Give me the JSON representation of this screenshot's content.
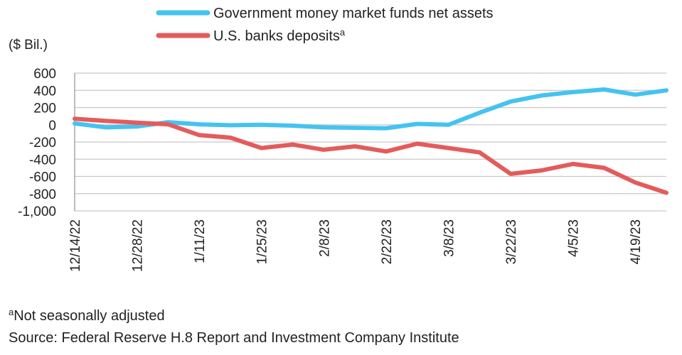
{
  "chart_data": {
    "type": "line",
    "ylabel": "($ Bil.)",
    "ylim": [
      -1000,
      600
    ],
    "yticks": [
      600,
      400,
      200,
      0,
      -200,
      -400,
      -600,
      -800,
      -1000
    ],
    "ytick_labels": [
      "600",
      "400",
      "200",
      "0",
      "-200",
      "-400",
      "-600",
      "-800",
      "-1,000"
    ],
    "x": [
      "12/14/22",
      "12/21/22",
      "12/28/22",
      "1/4/23",
      "1/11/23",
      "1/18/23",
      "1/25/23",
      "2/1/23",
      "2/8/23",
      "2/15/23",
      "2/22/23",
      "3/1/23",
      "3/8/23",
      "3/15/23",
      "3/22/23",
      "3/29/23",
      "4/5/23",
      "4/12/23",
      "4/19/23",
      "4/26/23"
    ],
    "xtick_labels": [
      "12/14/22",
      "12/28/22",
      "1/11/23",
      "1/25/23",
      "2/8/23",
      "2/22/23",
      "3/8/23",
      "3/22/23",
      "4/5/23",
      "4/19/23"
    ],
    "grid": true,
    "legend_position": "top",
    "series": [
      {
        "name": "Government money market funds net assets",
        "name_superscript": "",
        "color": "#45C3F0",
        "values": [
          15,
          -30,
          -20,
          30,
          5,
          -5,
          0,
          -10,
          -30,
          -35,
          -40,
          10,
          0,
          140,
          270,
          340,
          380,
          410,
          350,
          400
        ]
      },
      {
        "name": "U.S. banks deposits",
        "name_superscript": "a",
        "color": "#E45B5B",
        "values": [
          70,
          45,
          25,
          5,
          -120,
          -150,
          -270,
          -230,
          -290,
          -250,
          -310,
          -220,
          -270,
          -320,
          -570,
          -530,
          -455,
          -500,
          -670,
          -790
        ]
      }
    ],
    "notes": {
      "footnote_mark": "a",
      "footnote": "Not seasonally adjusted",
      "source": "Source: Federal Reserve H.8 Report and Investment Company Institute"
    }
  },
  "colors": {
    "grid": "#C8C8C8",
    "axis": "#999999"
  }
}
